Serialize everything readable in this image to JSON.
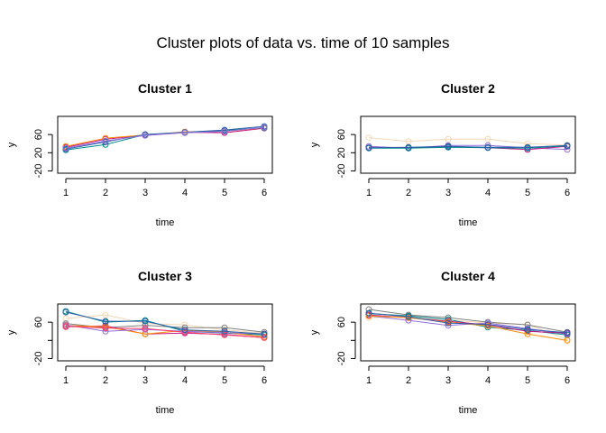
{
  "title": "Cluster plots of data vs. time of 10  samples",
  "chart_data": [
    {
      "type": "line",
      "title": "Cluster 1",
      "xlabel": "time",
      "ylabel": "y",
      "x": [
        1,
        2,
        3,
        4,
        5,
        6
      ],
      "ylim": [
        -25,
        100
      ],
      "yticks": [
        -20,
        20,
        60
      ],
      "series": [
        {
          "color": "#c71585",
          "values": [
            32,
            50,
            58,
            65,
            64,
            74
          ]
        },
        {
          "color": "#ff8c00",
          "values": [
            34,
            52,
            59,
            66,
            67,
            75
          ]
        },
        {
          "color": "#008b8b",
          "values": [
            26,
            38,
            60,
            64,
            69,
            75
          ]
        },
        {
          "color": "#2b5fab",
          "values": [
            28,
            44,
            60,
            65,
            70,
            78
          ]
        },
        {
          "color": "#9370db",
          "values": [
            30,
            46,
            58,
            64,
            67,
            76
          ]
        }
      ]
    },
    {
      "type": "line",
      "title": "Cluster 2",
      "xlabel": "time",
      "ylabel": "y",
      "x": [
        1,
        2,
        3,
        4,
        5,
        6
      ],
      "ylim": [
        -25,
        100
      ],
      "yticks": [
        -20,
        20,
        60
      ],
      "series": [
        {
          "color": "#f5d7b3",
          "values": [
            53,
            45,
            50,
            50,
            40,
            37
          ]
        },
        {
          "color": "#9370db",
          "values": [
            34,
            30,
            36,
            36,
            31,
            27
          ]
        },
        {
          "color": "#c71585",
          "values": [
            31,
            31,
            33,
            31,
            27,
            34
          ]
        },
        {
          "color": "#008b8b",
          "values": [
            30,
            30,
            32,
            31,
            30,
            35
          ]
        },
        {
          "color": "#2b5fab",
          "values": [
            31,
            32,
            34,
            32,
            32,
            36
          ]
        }
      ]
    },
    {
      "type": "line",
      "title": "Cluster 3",
      "xlabel": "time",
      "ylabel": "y",
      "x": [
        1,
        2,
        3,
        4,
        5,
        6
      ],
      "ylim": [
        -25,
        100
      ],
      "yticks": [
        -20,
        60
      ],
      "series": [
        {
          "color": "#f5d7b3",
          "values": [
            68,
            76,
            57,
            54,
            43,
            36
          ]
        },
        {
          "color": "#808080",
          "values": [
            57,
            48,
            53,
            48,
            48,
            38
          ]
        },
        {
          "color": "#008b8b",
          "values": [
            84,
            60,
            64,
            40,
            36,
            32
          ]
        },
        {
          "color": "#c71585",
          "values": [
            50,
            52,
            34,
            36,
            33,
            26
          ]
        },
        {
          "color": "#ff8c00",
          "values": [
            53,
            50,
            34,
            42,
            38,
            28
          ]
        },
        {
          "color": "#9370db",
          "values": [
            54,
            40,
            44,
            40,
            37,
            34
          ]
        },
        {
          "color": "#ff3b6b",
          "values": [
            51,
            47,
            46,
            38,
            32,
            26
          ]
        },
        {
          "color": "#2b5fab",
          "values": [
            82,
            62,
            62,
            43,
            40,
            34
          ]
        }
      ]
    },
    {
      "type": "line",
      "title": "Cluster 4",
      "xlabel": "time",
      "ylabel": "y",
      "x": [
        1,
        2,
        3,
        4,
        5,
        6
      ],
      "ylim": [
        -25,
        100
      ],
      "yticks": [
        -20,
        60
      ],
      "series": [
        {
          "color": "#f5d7b3",
          "values": [
            70,
            73,
            65,
            58,
            55,
            22
          ]
        },
        {
          "color": "#808080",
          "values": [
            88,
            76,
            70,
            60,
            54,
            38
          ]
        },
        {
          "color": "#008b8b",
          "values": [
            79,
            74,
            66,
            49,
            42,
            32
          ]
        },
        {
          "color": "#9370db",
          "values": [
            74,
            64,
            53,
            58,
            46,
            34
          ]
        },
        {
          "color": "#c71585",
          "values": [
            76,
            70,
            62,
            54,
            40,
            36
          ]
        },
        {
          "color": "#ff8c00",
          "values": [
            74,
            70,
            60,
            52,
            34,
            20
          ]
        },
        {
          "color": "#2b5fab",
          "values": [
            80,
            72,
            58,
            55,
            44,
            37
          ]
        }
      ]
    }
  ]
}
